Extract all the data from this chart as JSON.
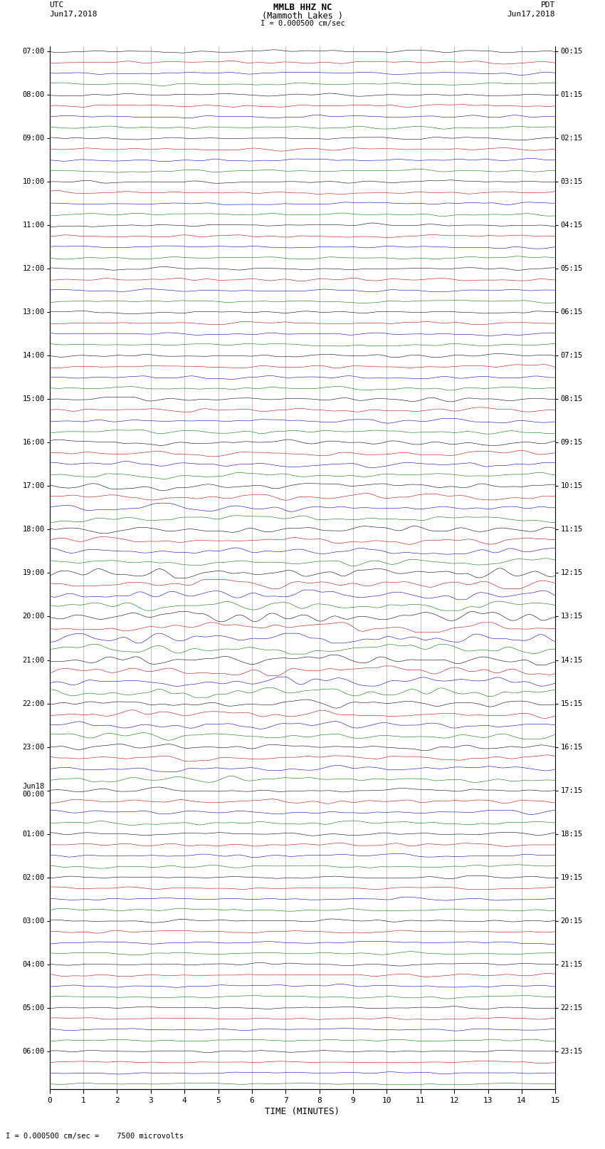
{
  "title_line1": "MMLB HHZ NC",
  "title_line2": "(Mammoth Lakes )",
  "scale_label": "I = 0.000500 cm/sec",
  "left_header1": "UTC",
  "left_header2": "Jun17,2018",
  "right_header1": "PDT",
  "right_header2": "Jun17,2018",
  "xlabel": "TIME (MINUTES)",
  "footer_label": "= 0.000500 cm/sec =    7500 microvolts",
  "x_min": 0,
  "x_max": 15,
  "x_ticks": [
    0,
    1,
    2,
    3,
    4,
    5,
    6,
    7,
    8,
    9,
    10,
    11,
    12,
    13,
    14,
    15
  ],
  "bg_color": "#ffffff",
  "trace_colors": [
    "#000000",
    "#cc0000",
    "#0000cc",
    "#007700"
  ],
  "grid_color": "#aaaaaa",
  "utc_times": [
    "07:00",
    "08:00",
    "09:00",
    "10:00",
    "11:00",
    "12:00",
    "13:00",
    "14:00",
    "15:00",
    "16:00",
    "17:00",
    "18:00",
    "19:00",
    "20:00",
    "21:00",
    "22:00",
    "23:00",
    "Jun18\n00:00",
    "01:00",
    "02:00",
    "03:00",
    "04:00",
    "05:00",
    "06:00"
  ],
  "pdt_times": [
    "00:15",
    "01:15",
    "02:15",
    "03:15",
    "04:15",
    "05:15",
    "06:15",
    "07:15",
    "08:15",
    "09:15",
    "10:15",
    "11:15",
    "12:15",
    "13:15",
    "14:15",
    "15:15",
    "16:15",
    "17:15",
    "18:15",
    "19:15",
    "20:15",
    "21:15",
    "22:15",
    "23:15"
  ],
  "traces_per_hour": 4,
  "num_hours": 24,
  "noise_seed": 42,
  "num_points": 2000,
  "quiet_amp": 0.06,
  "active_amp_scale": [
    1.0,
    1.0,
    1.0,
    1.0,
    1.0,
    1.0,
    1.0,
    1.2,
    1.5,
    2.0,
    2.5,
    2.5,
    3.5,
    4.0,
    3.5,
    2.5,
    2.0,
    1.5,
    1.2,
    1.0,
    1.0,
    1.0,
    0.8,
    0.7
  ]
}
